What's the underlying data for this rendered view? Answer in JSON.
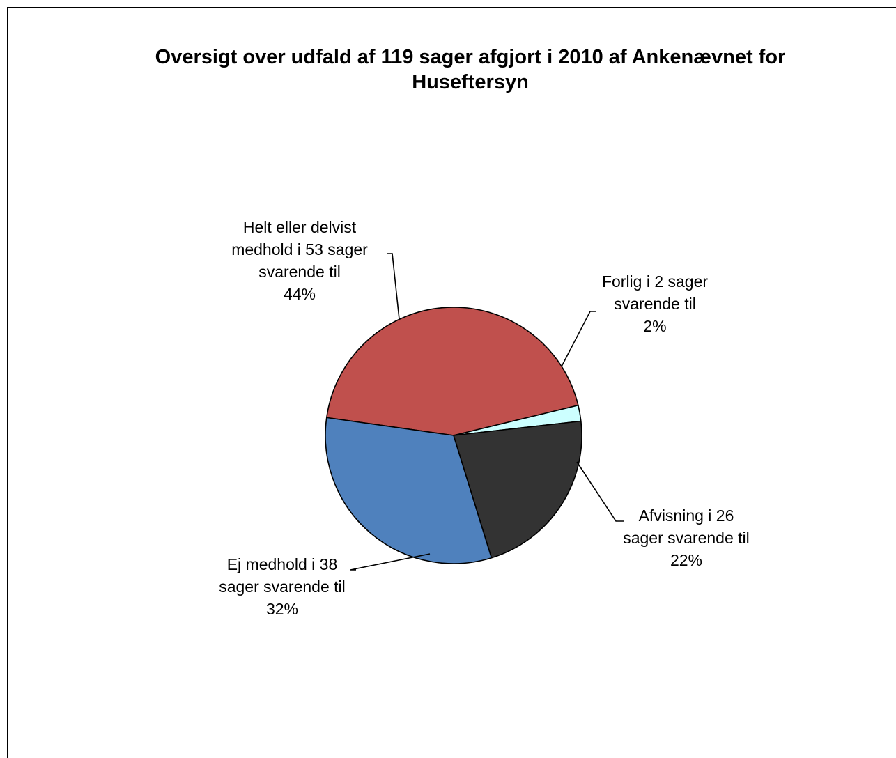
{
  "chart_data": {
    "type": "pie",
    "title_lines": [
      "Oversigt over udfald af 119 sager afgjort i 2010 af Ankenævnet for",
      "Huseftersyn"
    ],
    "slices": [
      {
        "key": "helt",
        "value": 44,
        "color": "#C0504D",
        "label_lines": [
          "Helt eller delvist",
          "medhold i 53 sager",
          "svarende til",
          "44%"
        ]
      },
      {
        "key": "forlig",
        "value": 2,
        "color": "#CCFFFF",
        "label_lines": [
          "Forlig i 2 sager",
          "svarende til",
          "2%"
        ]
      },
      {
        "key": "afvisning",
        "value": 22,
        "color": "#333333",
        "label_lines": [
          "Afvisning i 26",
          "sager svarende til",
          "22%"
        ]
      },
      {
        "key": "ej",
        "value": 32,
        "color": "#4F81BD",
        "label_lines": [
          "Ej medhold i 38",
          "sager svarende til",
          "32%"
        ]
      }
    ],
    "legend": "none"
  }
}
